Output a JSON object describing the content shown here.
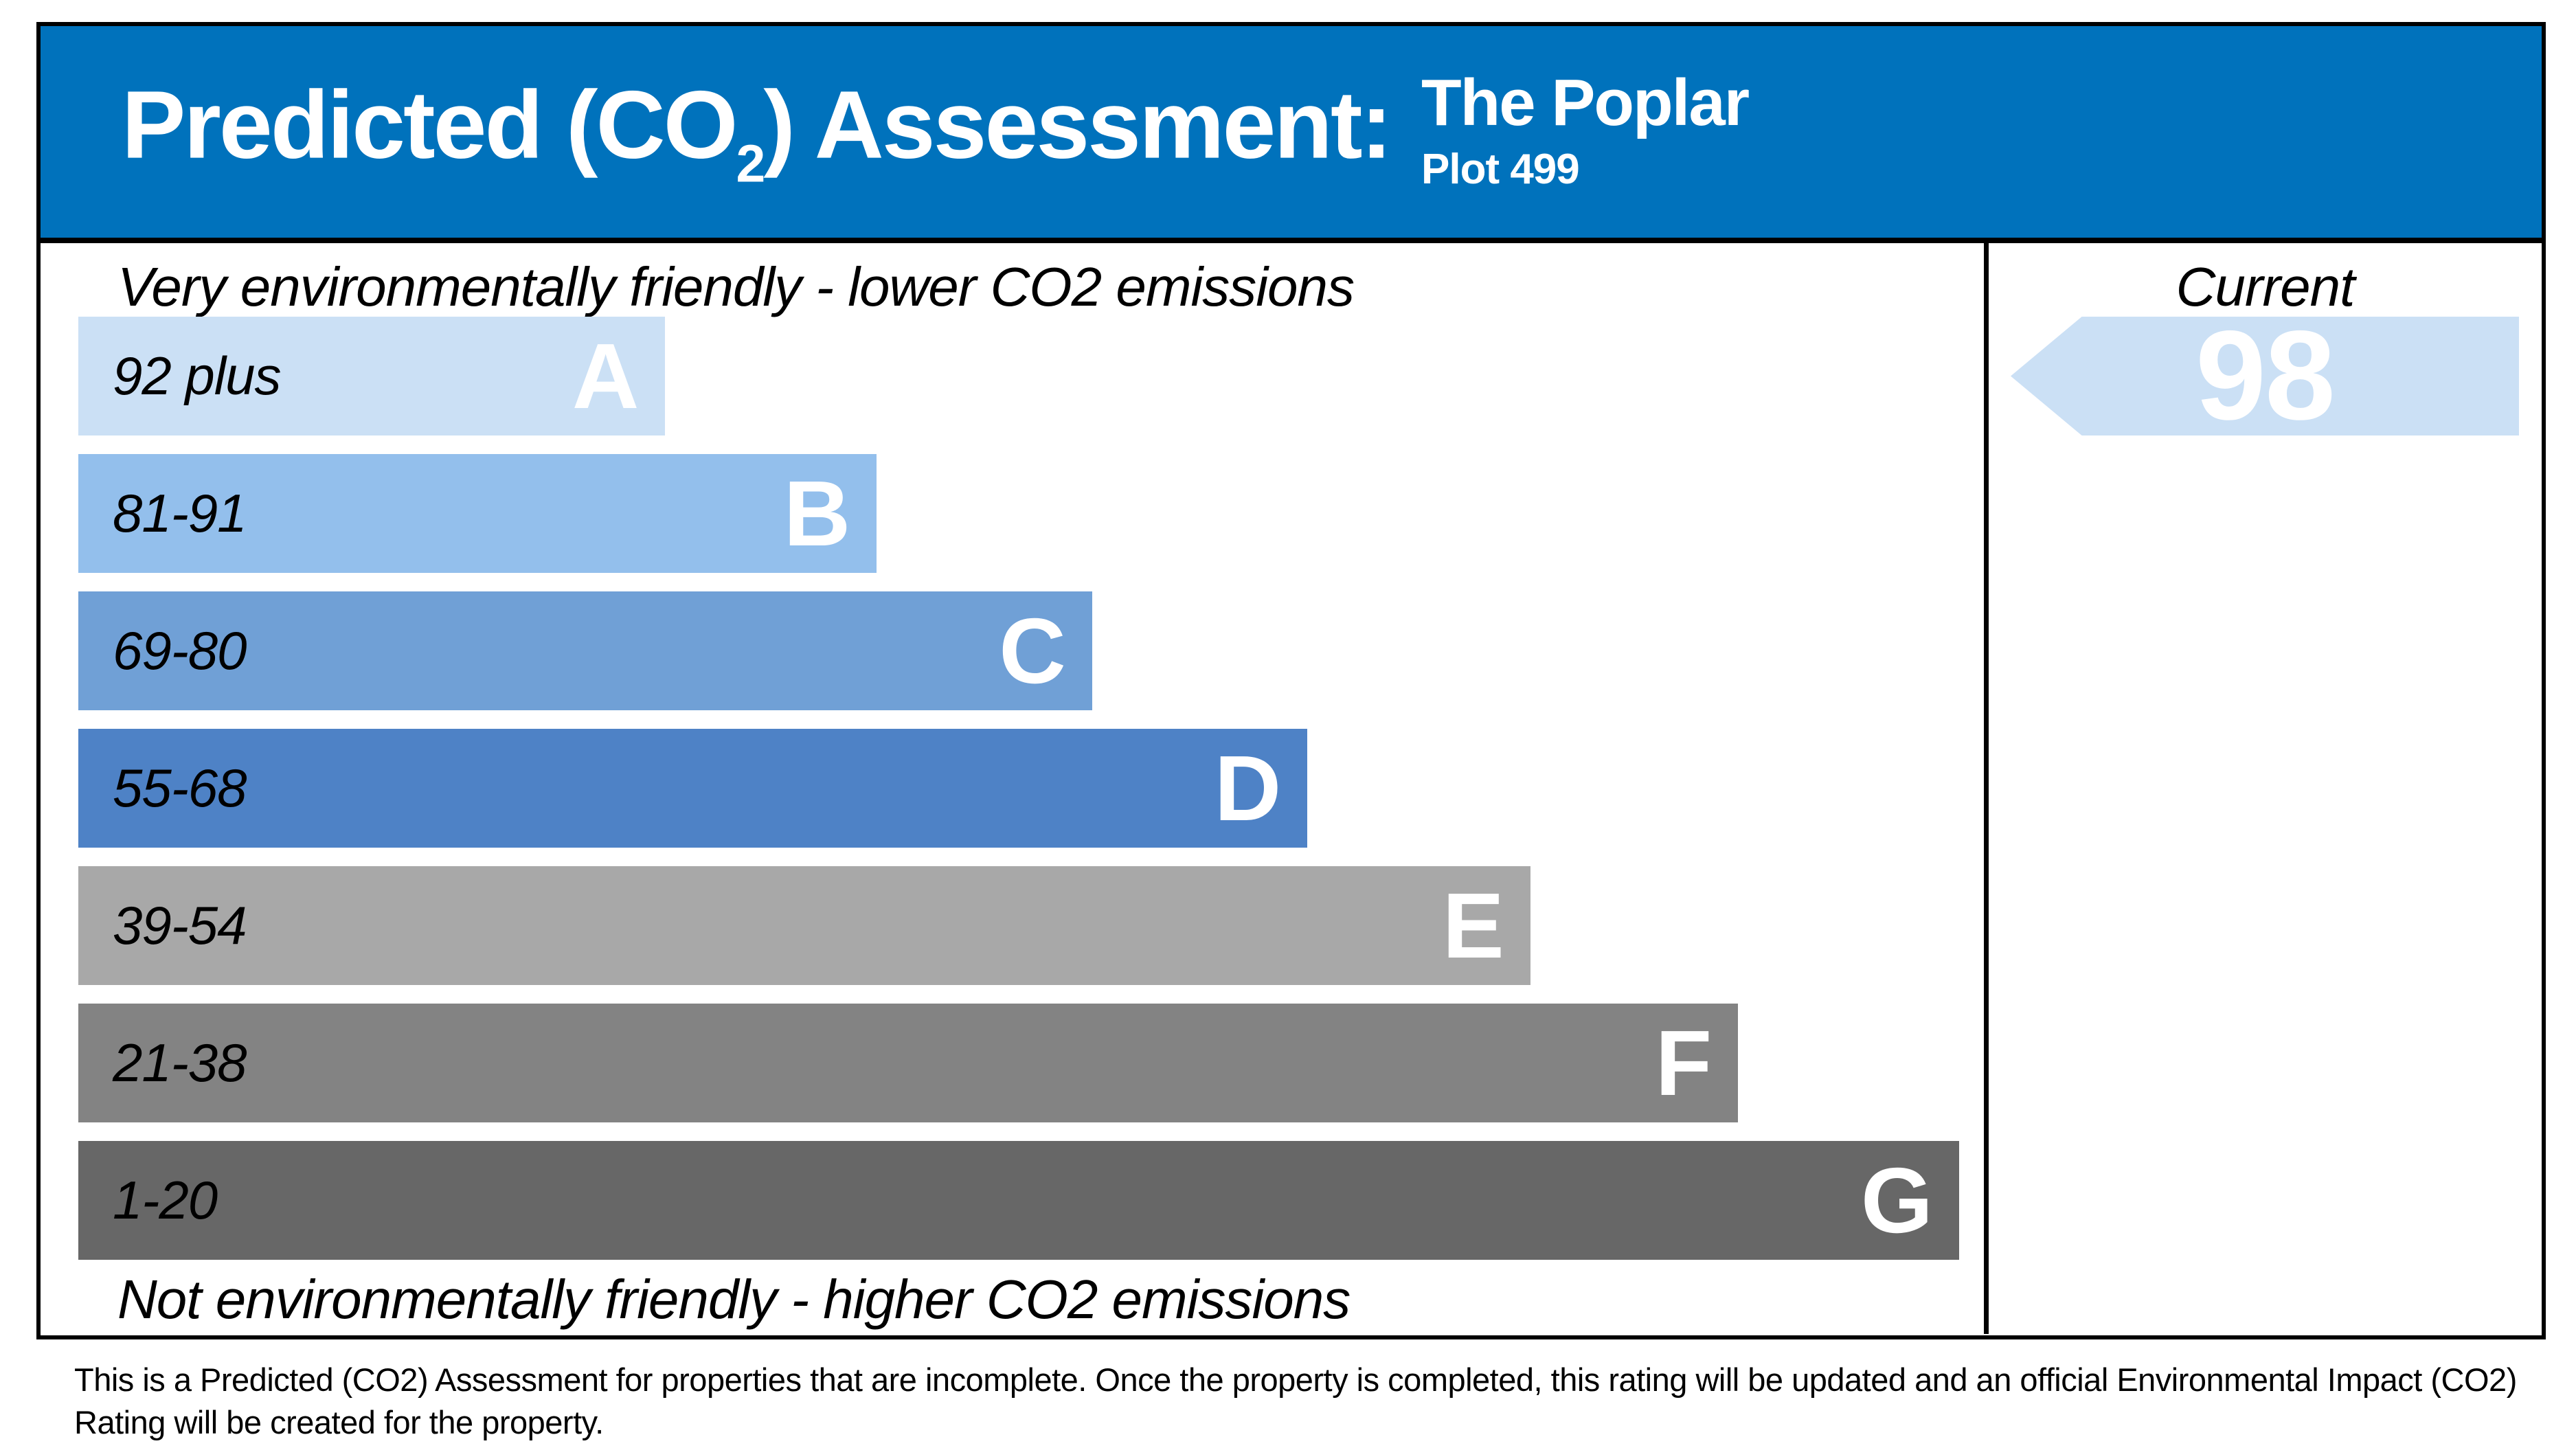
{
  "header": {
    "title_pre": "Predicted (CO",
    "title_sub": "2",
    "title_post": ") Assessment:",
    "property_name": "The Poplar",
    "plot": "Plot 499",
    "bg_color": "#0072bc",
    "text_color": "#ffffff"
  },
  "chart_data": {
    "type": "bar",
    "title": "Predicted (CO2) Assessment",
    "top_axis_label": "Very environmentally friendly - lower CO2 emissions",
    "bottom_axis_label": "Not environmentally friendly - higher CO2 emissions",
    "bands": [
      {
        "letter": "A",
        "range": "92 plus",
        "color": "#cbe0f5",
        "width_pct": 30.8
      },
      {
        "letter": "B",
        "range": "81-91",
        "color": "#93bfec",
        "width_pct": 41.9
      },
      {
        "letter": "C",
        "range": "69-80",
        "color": "#70a0d6",
        "width_pct": 53.2
      },
      {
        "letter": "D",
        "range": "55-68",
        "color": "#4e82c6",
        "width_pct": 64.5
      },
      {
        "letter": "E",
        "range": "39-54",
        "color": "#a8a8a8",
        "width_pct": 76.2
      },
      {
        "letter": "F",
        "range": "21-38",
        "color": "#838383",
        "width_pct": 87.1
      },
      {
        "letter": "G",
        "range": "1-20",
        "color": "#676767",
        "width_pct": 98.7
      }
    ],
    "current": {
      "label": "Current",
      "value": "98",
      "band": "A",
      "arrow_color": "#cbe0f5"
    }
  },
  "footer": {
    "note": "This is a Predicted (CO2) Assessment for properties that are incomplete. Once the property is completed, this rating will be updated and an official Environmental Impact (CO2) Rating will be created for the property."
  }
}
